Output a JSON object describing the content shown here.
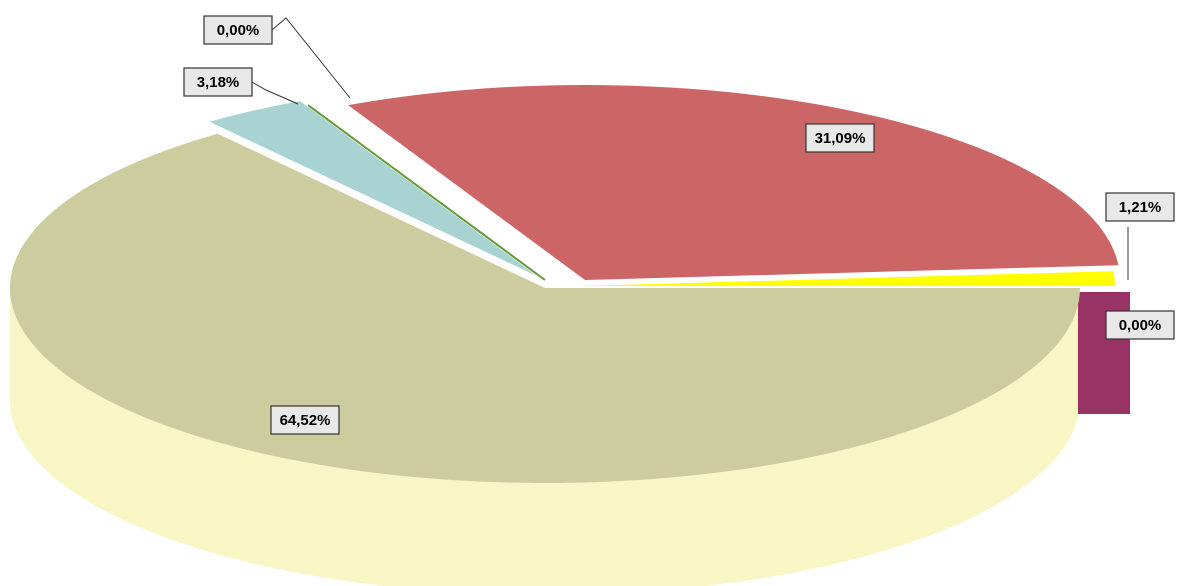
{
  "chart_data": {
    "type": "pie",
    "values": [
      64.52,
      3.18,
      0,
      31.09,
      1.21,
      0
    ],
    "value_labels": [
      "64,52%",
      "3,18%",
      "0,00%",
      "31,09%",
      "1,21%",
      "0,00%"
    ],
    "colors": [
      "#cdcc9f",
      "#a9d3d3",
      "#669933",
      "#cc6666",
      "#ffff00",
      "#993366"
    ],
    "side_colors": [
      "#f8f6c4",
      "#c4f2f2",
      "#669933",
      "#f4857f",
      "#e6e600",
      "#993366"
    ]
  }
}
